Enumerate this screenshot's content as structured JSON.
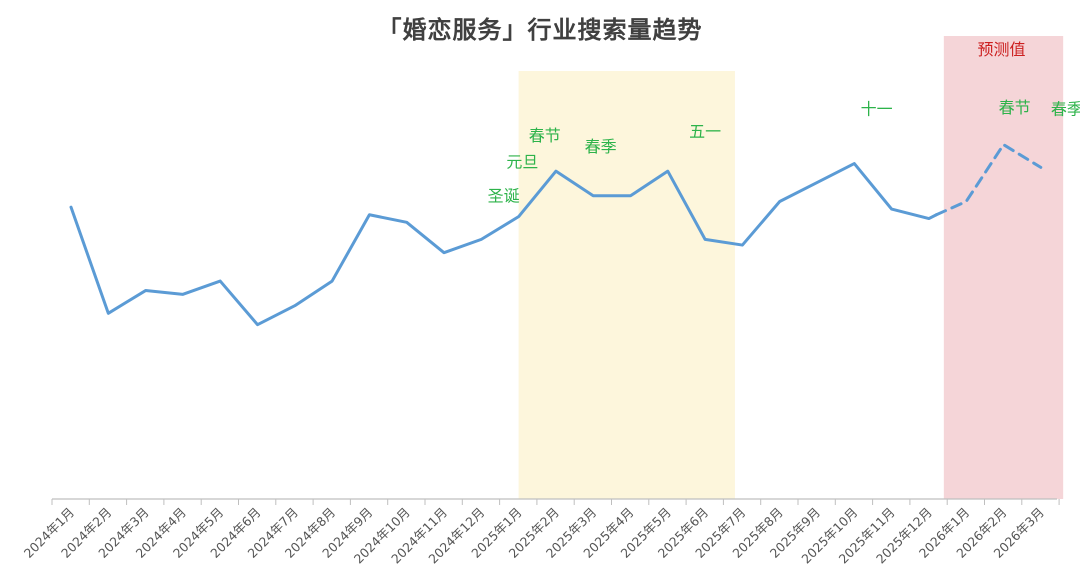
{
  "chart_data": {
    "type": "line",
    "title": "「婚恋服务」行业搜索量趋势",
    "xlabel": "",
    "ylabel": "",
    "ylim": [
      0,
      100
    ],
    "grid": false,
    "categories": [
      "2024年1月",
      "2024年2月",
      "2024年3月",
      "2024年4月",
      "2024年5月",
      "2024年6月",
      "2024年7月",
      "2024年8月",
      "2024年9月",
      "2024年10月",
      "2024年11月",
      "2024年12月",
      "2025年1月",
      "2025年2月",
      "2025年3月",
      "2025年4月",
      "2025年5月",
      "2025年6月",
      "2025年7月",
      "2025年8月",
      "2025年9月",
      "2025年10月",
      "2025年11月",
      "2025年12月",
      "2026年1月",
      "2026年2月",
      "2026年3月"
    ],
    "series": [
      {
        "style": "solid",
        "color": "#5b9bd5",
        "x": [
          0,
          1,
          2,
          3,
          4,
          5,
          6,
          7,
          8,
          9,
          10,
          11,
          12,
          13,
          14,
          15,
          16,
          17,
          18,
          19,
          20,
          21,
          22,
          23,
          23.2
        ],
        "values": [
          77,
          49,
          55,
          54,
          57.5,
          46,
          51,
          57.5,
          75,
          73,
          65,
          68.5,
          74.5,
          86.5,
          80,
          80,
          86.5,
          68.5,
          67,
          78.5,
          83.5,
          88.5,
          76.5,
          74,
          75
        ]
      },
      {
        "style": "dashed",
        "color": "#5b9bd5",
        "x": [
          23.2,
          24,
          25,
          26
        ],
        "values": [
          75,
          78.5,
          93.5,
          87.5
        ]
      }
    ],
    "highlight_regions": [
      {
        "from": 12,
        "to": 17.8,
        "color": "#fdf6dc"
      },
      {
        "from": 23.4,
        "to": 26.6,
        "color": "#f5d5d8",
        "label": "预测值"
      }
    ],
    "annotations": [
      {
        "text": "圣诞",
        "x": 11.6,
        "y": 78.5
      },
      {
        "text": "元旦",
        "x": 12.1,
        "y": 87.5
      },
      {
        "text": "春节",
        "x": 12.7,
        "y": 94.5
      },
      {
        "text": "春季",
        "x": 14.2,
        "y": 91.5
      },
      {
        "text": "五一",
        "x": 17,
        "y": 95.5
      },
      {
        "text": "十一",
        "x": 21.6,
        "y": 101.5
      },
      {
        "text": "春节",
        "x": 25.3,
        "y": 101.8
      },
      {
        "text": "春季",
        "x": 26.7,
        "y": 101.4
      }
    ],
    "colors": {
      "line": "#5b9bd5",
      "annotation": "#2db34a",
      "forecast_label": "#cc1f1f",
      "axis": "#bfbfbf"
    }
  }
}
